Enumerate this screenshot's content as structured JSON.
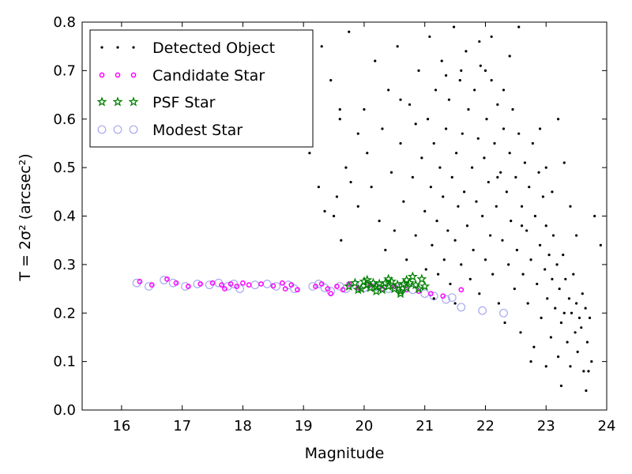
{
  "chart_data": {
    "type": "scatter",
    "xlabel": "Magnitude",
    "ylabel": "T = 2σ² (arcsec²)",
    "xlim": [
      15.35,
      24.0
    ],
    "ylim": [
      0.0,
      0.8
    ],
    "xticks": [
      16,
      17,
      18,
      19,
      20,
      21,
      22,
      23,
      24
    ],
    "yticks": [
      0.0,
      0.1,
      0.2,
      0.3,
      0.4,
      0.5,
      0.6,
      0.7,
      0.8
    ],
    "xtick_labels": [
      "16",
      "17",
      "18",
      "19",
      "20",
      "21",
      "22",
      "23",
      "24"
    ],
    "ytick_labels": [
      "0.0",
      "0.1",
      "0.2",
      "0.3",
      "0.4",
      "0.5",
      "0.6",
      "0.7",
      "0.8"
    ],
    "grid": false,
    "legend_position": "top-left",
    "series": [
      {
        "name": "Detected Object",
        "marker": "dot",
        "color": "#000000",
        "points": [
          [
            19.3,
            0.75
          ],
          [
            19.45,
            0.68
          ],
          [
            19.6,
            0.62
          ],
          [
            19.75,
            0.78
          ],
          [
            19.9,
            0.57
          ],
          [
            19.7,
            0.5
          ],
          [
            19.55,
            0.44
          ],
          [
            19.5,
            0.4
          ],
          [
            19.62,
            0.35
          ],
          [
            19.78,
            0.47
          ],
          [
            19.9,
            0.42
          ],
          [
            20.0,
            0.62
          ],
          [
            20.05,
            0.53
          ],
          [
            20.12,
            0.46
          ],
          [
            20.18,
            0.72
          ],
          [
            20.25,
            0.39
          ],
          [
            20.3,
            0.58
          ],
          [
            20.35,
            0.33
          ],
          [
            20.4,
            0.66
          ],
          [
            20.45,
            0.49
          ],
          [
            20.5,
            0.37
          ],
          [
            20.55,
            0.75
          ],
          [
            20.6,
            0.55
          ],
          [
            20.65,
            0.43
          ],
          [
            20.7,
            0.31
          ],
          [
            20.75,
            0.63
          ],
          [
            20.8,
            0.48
          ],
          [
            20.85,
            0.36
          ],
          [
            20.9,
            0.7
          ],
          [
            20.95,
            0.52
          ],
          [
            21.0,
            0.41
          ],
          [
            21.02,
            0.29
          ],
          [
            21.05,
            0.6
          ],
          [
            21.08,
            0.77
          ],
          [
            21.1,
            0.46
          ],
          [
            21.12,
            0.34
          ],
          [
            21.15,
            0.55
          ],
          [
            21.18,
            0.66
          ],
          [
            21.2,
            0.39
          ],
          [
            21.22,
            0.28
          ],
          [
            21.25,
            0.5
          ],
          [
            21.28,
            0.72
          ],
          [
            21.3,
            0.44
          ],
          [
            21.32,
            0.31
          ],
          [
            21.35,
            0.58
          ],
          [
            21.38,
            0.37
          ],
          [
            21.4,
            0.64
          ],
          [
            21.42,
            0.26
          ],
          [
            21.45,
            0.48
          ],
          [
            21.48,
            0.79
          ],
          [
            21.5,
            0.35
          ],
          [
            21.52,
            0.53
          ],
          [
            21.55,
            0.42
          ],
          [
            21.58,
            0.68
          ],
          [
            21.6,
            0.3
          ],
          [
            21.62,
            0.57
          ],
          [
            21.65,
            0.45
          ],
          [
            21.68,
            0.74
          ],
          [
            21.7,
            0.38
          ],
          [
            21.72,
            0.62
          ],
          [
            21.75,
            0.27
          ],
          [
            21.78,
            0.5
          ],
          [
            21.8,
            0.33
          ],
          [
            21.82,
            0.66
          ],
          [
            21.85,
            0.43
          ],
          [
            21.88,
            0.56
          ],
          [
            21.9,
            0.24
          ],
          [
            21.92,
            0.71
          ],
          [
            21.95,
            0.4
          ],
          [
            21.98,
            0.52
          ],
          [
            22.0,
            0.31
          ],
          [
            22.02,
            0.6
          ],
          [
            22.05,
            0.47
          ],
          [
            22.08,
            0.36
          ],
          [
            22.1,
            0.68
          ],
          [
            22.12,
            0.28
          ],
          [
            22.15,
            0.55
          ],
          [
            22.18,
            0.42
          ],
          [
            22.2,
            0.63
          ],
          [
            22.22,
            0.22
          ],
          [
            22.25,
            0.49
          ],
          [
            22.28,
            0.35
          ],
          [
            22.3,
            0.58
          ],
          [
            22.32,
            0.18
          ],
          [
            22.35,
            0.45
          ],
          [
            22.38,
            0.3
          ],
          [
            22.4,
            0.53
          ],
          [
            22.42,
            0.39
          ],
          [
            22.45,
            0.62
          ],
          [
            22.48,
            0.25
          ],
          [
            22.5,
            0.48
          ],
          [
            22.52,
            0.33
          ],
          [
            22.55,
            0.57
          ],
          [
            22.58,
            0.16
          ],
          [
            22.6,
            0.42
          ],
          [
            22.62,
            0.28
          ],
          [
            22.65,
            0.51
          ],
          [
            22.68,
            0.37
          ],
          [
            22.7,
            0.22
          ],
          [
            22.72,
            0.46
          ],
          [
            22.75,
            0.31
          ],
          [
            22.78,
            0.55
          ],
          [
            22.8,
            0.13
          ],
          [
            22.82,
            0.4
          ],
          [
            22.85,
            0.26
          ],
          [
            22.88,
            0.49
          ],
          [
            22.9,
            0.34
          ],
          [
            22.92,
            0.19
          ],
          [
            22.95,
            0.44
          ],
          [
            22.98,
            0.29
          ],
          [
            23.0,
            0.38
          ],
          [
            23.02,
            0.23
          ],
          [
            23.05,
            0.32
          ],
          [
            23.08,
            0.15
          ],
          [
            23.1,
            0.27
          ],
          [
            23.12,
            0.36
          ],
          [
            23.15,
            0.21
          ],
          [
            23.18,
            0.3
          ],
          [
            23.2,
            0.11
          ],
          [
            23.22,
            0.25
          ],
          [
            23.25,
            0.18
          ],
          [
            23.28,
            0.32
          ],
          [
            23.3,
            0.2
          ],
          [
            23.32,
            0.27
          ],
          [
            23.35,
            0.14
          ],
          [
            23.38,
            0.23
          ],
          [
            23.4,
            0.09
          ],
          [
            23.42,
            0.2
          ],
          [
            23.45,
            0.28
          ],
          [
            23.48,
            0.16
          ],
          [
            23.5,
            0.22
          ],
          [
            23.52,
            0.12
          ],
          [
            23.55,
            0.19
          ],
          [
            23.58,
            0.17
          ],
          [
            23.6,
            0.24
          ],
          [
            23.62,
            0.08
          ],
          [
            23.65,
            0.21
          ],
          [
            23.68,
            0.14
          ],
          [
            23.7,
            0.08
          ],
          [
            23.72,
            0.19
          ],
          [
            23.75,
            0.1
          ],
          [
            23.66,
            0.04
          ],
          [
            23.8,
            0.4
          ],
          [
            23.9,
            0.34
          ],
          [
            19.35,
            0.41
          ],
          [
            19.25,
            0.46
          ],
          [
            19.1,
            0.53
          ],
          [
            19.6,
            0.6
          ],
          [
            21.15,
            0.23
          ],
          [
            21.5,
            0.22
          ],
          [
            22.55,
            0.79
          ],
          [
            22.0,
            0.7
          ],
          [
            22.3,
            0.66
          ],
          [
            21.9,
            0.76
          ],
          [
            22.1,
            0.77
          ],
          [
            22.4,
            0.73
          ],
          [
            20.6,
            0.64
          ],
          [
            20.85,
            0.59
          ],
          [
            21.35,
            0.69
          ],
          [
            21.6,
            0.7
          ],
          [
            22.2,
            0.48
          ],
          [
            22.6,
            0.38
          ],
          [
            22.9,
            0.58
          ],
          [
            23.0,
            0.5
          ],
          [
            23.1,
            0.45
          ],
          [
            23.2,
            0.6
          ],
          [
            23.3,
            0.51
          ],
          [
            23.4,
            0.42
          ],
          [
            23.5,
            0.36
          ],
          [
            23.25,
            0.05
          ],
          [
            23.0,
            0.09
          ],
          [
            22.75,
            0.1
          ]
        ]
      },
      {
        "name": "Candidate Star",
        "marker": "circle",
        "color": "#ff00ff",
        "points": [
          [
            16.3,
            0.265
          ],
          [
            16.5,
            0.258
          ],
          [
            16.75,
            0.27
          ],
          [
            16.9,
            0.262
          ],
          [
            17.1,
            0.255
          ],
          [
            17.3,
            0.26
          ],
          [
            17.5,
            0.262
          ],
          [
            17.65,
            0.258
          ],
          [
            17.7,
            0.25
          ],
          [
            17.8,
            0.26
          ],
          [
            17.9,
            0.255
          ],
          [
            18.0,
            0.262
          ],
          [
            18.1,
            0.258
          ],
          [
            18.3,
            0.26
          ],
          [
            18.5,
            0.256
          ],
          [
            18.65,
            0.262
          ],
          [
            18.7,
            0.25
          ],
          [
            18.8,
            0.258
          ],
          [
            18.9,
            0.248
          ],
          [
            19.2,
            0.255
          ],
          [
            19.3,
            0.26
          ],
          [
            19.4,
            0.25
          ],
          [
            19.45,
            0.24
          ],
          [
            19.55,
            0.255
          ],
          [
            19.65,
            0.248
          ],
          [
            19.75,
            0.26
          ],
          [
            19.9,
            0.252
          ],
          [
            20.1,
            0.258
          ],
          [
            20.3,
            0.25
          ],
          [
            20.5,
            0.255
          ],
          [
            20.7,
            0.248
          ],
          [
            20.9,
            0.245
          ],
          [
            21.1,
            0.24
          ],
          [
            21.3,
            0.235
          ],
          [
            21.6,
            0.248
          ]
        ]
      },
      {
        "name": "PSF Star",
        "marker": "star",
        "color": "#008000",
        "points": [
          [
            19.75,
            0.255
          ],
          [
            19.85,
            0.262
          ],
          [
            19.95,
            0.25
          ],
          [
            20.0,
            0.265
          ],
          [
            20.05,
            0.258
          ],
          [
            20.1,
            0.252
          ],
          [
            20.15,
            0.262
          ],
          [
            20.2,
            0.255
          ],
          [
            20.25,
            0.26
          ],
          [
            20.3,
            0.248
          ],
          [
            20.35,
            0.262
          ],
          [
            20.4,
            0.255
          ],
          [
            20.45,
            0.265
          ],
          [
            20.5,
            0.25
          ],
          [
            20.55,
            0.258
          ],
          [
            20.6,
            0.245
          ],
          [
            20.65,
            0.26
          ],
          [
            20.7,
            0.252
          ],
          [
            20.75,
            0.262
          ],
          [
            20.8,
            0.275
          ],
          [
            20.85,
            0.258
          ],
          [
            20.9,
            0.25
          ],
          [
            20.95,
            0.27
          ],
          [
            21.0,
            0.255
          ],
          [
            20.6,
            0.24
          ],
          [
            20.2,
            0.245
          ],
          [
            20.4,
            0.27
          ],
          [
            19.9,
            0.248
          ],
          [
            20.7,
            0.268
          ],
          [
            20.05,
            0.268
          ]
        ]
      },
      {
        "name": "Modest Star",
        "marker": "open-circle",
        "color": "#a8a8f0",
        "points": [
          [
            16.25,
            0.262
          ],
          [
            16.45,
            0.255
          ],
          [
            16.7,
            0.268
          ],
          [
            16.85,
            0.262
          ],
          [
            17.05,
            0.255
          ],
          [
            17.25,
            0.26
          ],
          [
            17.45,
            0.258
          ],
          [
            17.6,
            0.262
          ],
          [
            17.75,
            0.255
          ],
          [
            17.85,
            0.26
          ],
          [
            17.95,
            0.25
          ],
          [
            18.2,
            0.258
          ],
          [
            18.4,
            0.26
          ],
          [
            18.55,
            0.255
          ],
          [
            18.75,
            0.258
          ],
          [
            18.85,
            0.25
          ],
          [
            19.15,
            0.255
          ],
          [
            19.25,
            0.26
          ],
          [
            19.35,
            0.252
          ],
          [
            19.45,
            0.245
          ],
          [
            19.6,
            0.255
          ],
          [
            19.7,
            0.25
          ],
          [
            19.85,
            0.258
          ],
          [
            20.0,
            0.252
          ],
          [
            20.2,
            0.255
          ],
          [
            20.4,
            0.25
          ],
          [
            20.6,
            0.252
          ],
          [
            20.8,
            0.248
          ],
          [
            21.0,
            0.24
          ],
          [
            21.15,
            0.235
          ],
          [
            21.35,
            0.228
          ],
          [
            21.45,
            0.232
          ],
          [
            21.6,
            0.212
          ],
          [
            21.95,
            0.205
          ],
          [
            22.3,
            0.2
          ]
        ]
      }
    ]
  },
  "legend": {
    "items": [
      {
        "label": "Detected Object"
      },
      {
        "label": "Candidate Star"
      },
      {
        "label": "PSF Star"
      },
      {
        "label": "Modest Star"
      }
    ]
  }
}
